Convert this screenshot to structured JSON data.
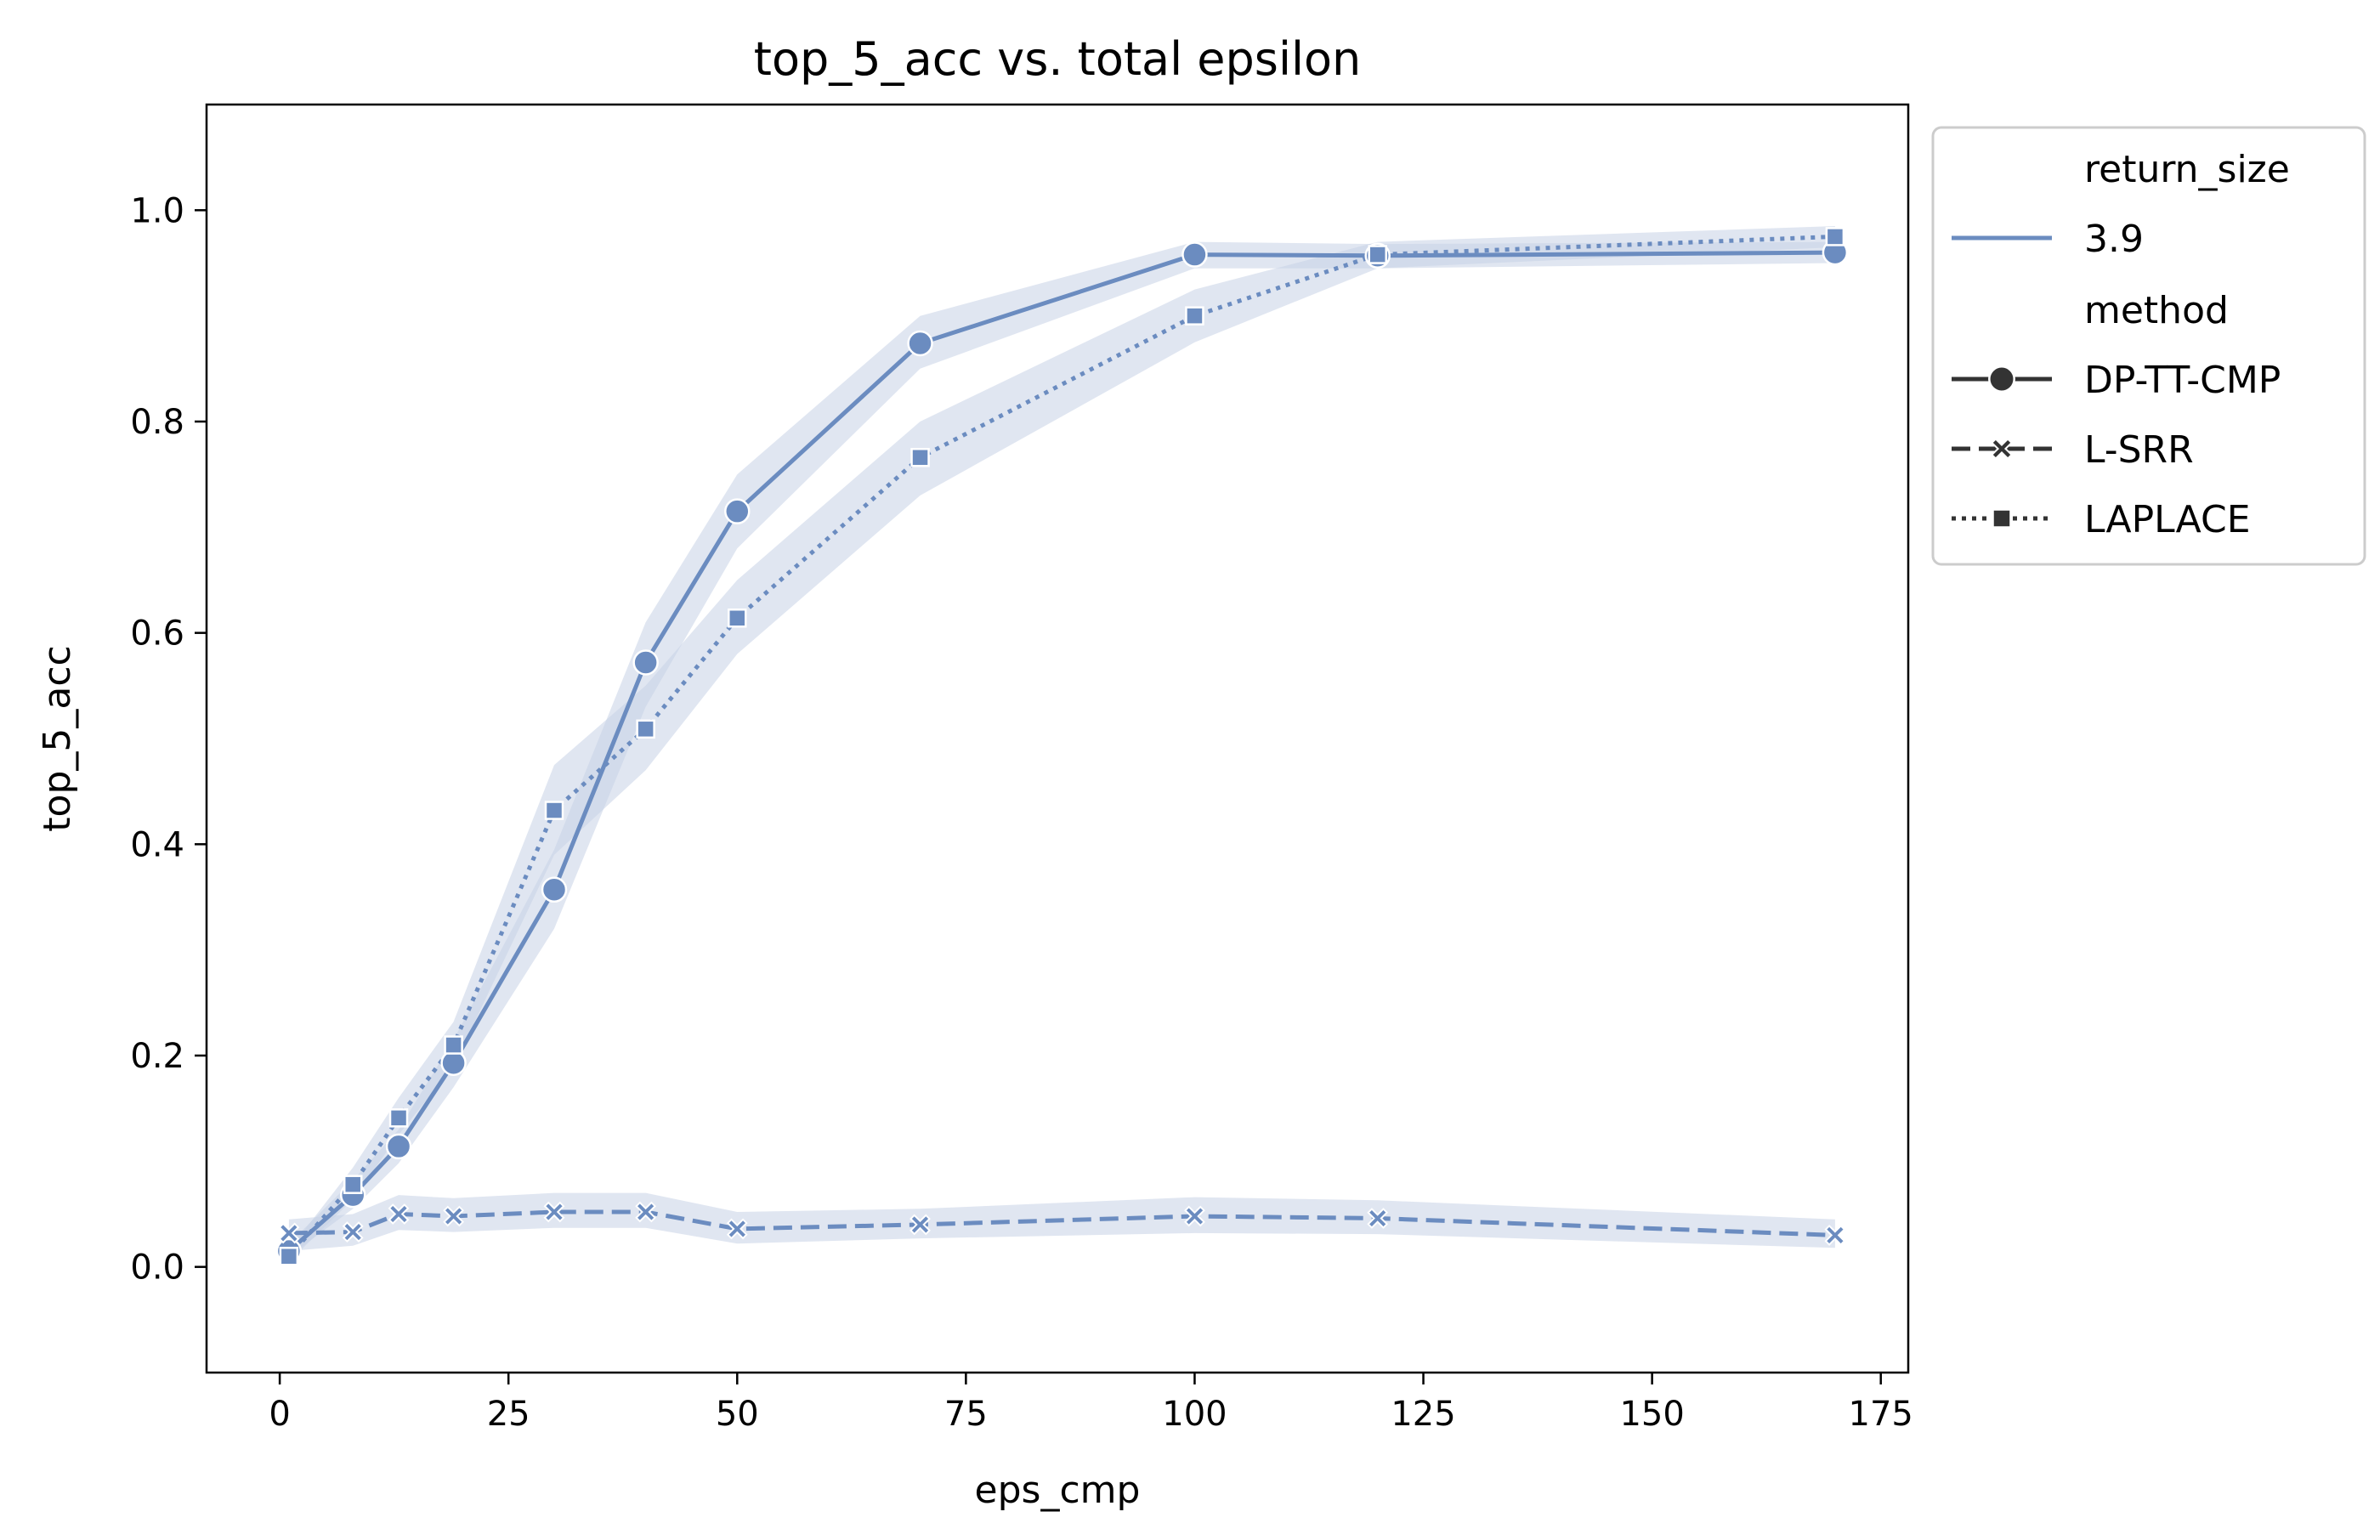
{
  "chart_data": {
    "type": "line",
    "title": "top_5_acc vs. total epsilon",
    "xlabel": "eps_cmp",
    "ylabel": "top_5_acc",
    "xlim": [
      -8,
      178
    ],
    "ylim": [
      -0.1,
      1.1
    ],
    "x_ticks": [
      0,
      25,
      50,
      75,
      100,
      125,
      150,
      175
    ],
    "y_ticks": [
      0.0,
      0.2,
      0.4,
      0.6,
      0.8,
      1.0
    ],
    "x_tick_labels": [
      "0",
      "25",
      "50",
      "75",
      "100",
      "125",
      "150",
      "175"
    ],
    "y_tick_labels": [
      "0.0",
      "0.2",
      "0.4",
      "0.6",
      "0.8",
      "1.0"
    ],
    "grid": false,
    "legend_position": "outside-top-right",
    "colors": {
      "line": "#6b8cc0",
      "band": "#c7d1e5",
      "legend_dark": "#333333"
    },
    "legend": {
      "hue_title": "return_size",
      "hue_entries": [
        {
          "label": "3.9"
        }
      ],
      "style_title": "method",
      "style_entries": [
        {
          "label": "DP-TT-CMP",
          "marker": "circle",
          "dash": "solid"
        },
        {
          "label": "L-SRR",
          "marker": "x",
          "dash": "dashed"
        },
        {
          "label": "LAPLACE",
          "marker": "square",
          "dash": "dotted"
        }
      ]
    },
    "series": [
      {
        "name": "DP-TT-CMP",
        "marker": "circle",
        "dash": "solid",
        "x": [
          1,
          8,
          13,
          19,
          30,
          40,
          50,
          70,
          100,
          120,
          170
        ],
        "y": [
          0.015,
          0.068,
          0.114,
          0.193,
          0.357,
          0.572,
          0.715,
          0.874,
          0.958,
          0.957,
          0.96
        ],
        "ci_low": [
          0.01,
          0.055,
          0.098,
          0.17,
          0.32,
          0.53,
          0.68,
          0.85,
          0.945,
          0.945,
          0.95
        ],
        "ci_high": [
          0.022,
          0.082,
          0.13,
          0.215,
          0.395,
          0.61,
          0.75,
          0.9,
          0.97,
          0.968,
          0.97
        ]
      },
      {
        "name": "L-SRR",
        "marker": "x",
        "dash": "dashed",
        "x": [
          1,
          8,
          13,
          19,
          30,
          40,
          50,
          70,
          100,
          120,
          170
        ],
        "y": [
          0.032,
          0.033,
          0.05,
          0.048,
          0.052,
          0.052,
          0.036,
          0.04,
          0.048,
          0.046,
          0.03
        ],
        "ci_low": [
          0.015,
          0.02,
          0.035,
          0.033,
          0.037,
          0.037,
          0.022,
          0.027,
          0.032,
          0.031,
          0.018
        ],
        "ci_high": [
          0.045,
          0.05,
          0.068,
          0.065,
          0.07,
          0.07,
          0.052,
          0.055,
          0.066,
          0.063,
          0.045
        ]
      },
      {
        "name": "LAPLACE",
        "marker": "square",
        "dash": "dotted",
        "x": [
          1,
          8,
          13,
          19,
          30,
          40,
          50,
          70,
          100,
          120,
          170
        ],
        "y": [
          0.01,
          0.078,
          0.141,
          0.21,
          0.432,
          0.509,
          0.614,
          0.766,
          0.9,
          0.958,
          0.975
        ],
        "ci_low": [
          0.005,
          0.064,
          0.125,
          0.19,
          0.39,
          0.47,
          0.58,
          0.73,
          0.875,
          0.945,
          0.965
        ],
        "ci_high": [
          0.016,
          0.094,
          0.16,
          0.232,
          0.475,
          0.55,
          0.65,
          0.8,
          0.925,
          0.97,
          0.985
        ]
      }
    ]
  }
}
